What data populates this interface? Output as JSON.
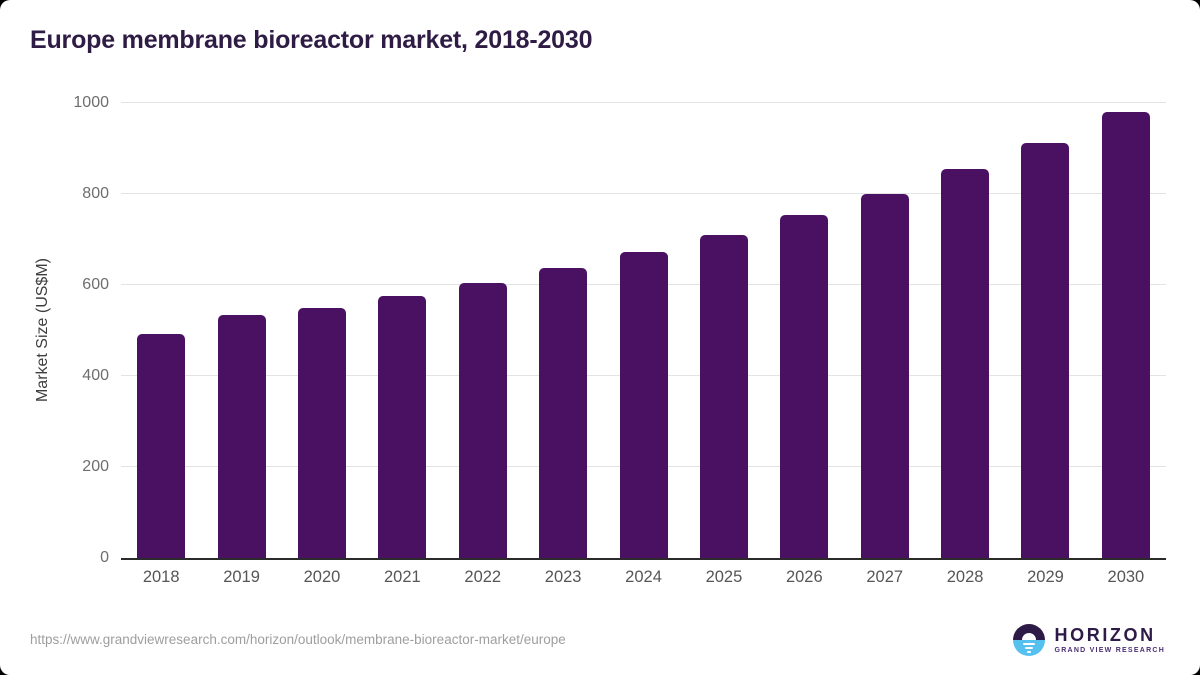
{
  "page": {
    "background": "#000000",
    "card_background": "#ffffff"
  },
  "header": {
    "title": "Europe membrane bioreactor market, 2018-2030"
  },
  "chart_data": {
    "type": "bar",
    "title": "Europe membrane bioreactor market, 2018-2030",
    "categories": [
      "2018",
      "2019",
      "2020",
      "2021",
      "2022",
      "2023",
      "2024",
      "2025",
      "2026",
      "2027",
      "2028",
      "2029",
      "2030"
    ],
    "values": [
      492,
      534,
      550,
      575,
      605,
      637,
      672,
      709,
      753,
      801,
      855,
      913,
      981
    ],
    "xlabel": "",
    "ylabel": "Market Size (US$M)",
    "ylim": [
      0,
      1000
    ],
    "yticks": [
      0,
      200,
      400,
      600,
      800,
      1000
    ],
    "grid": true,
    "legend_position": "none",
    "bar_color": "#4a1162"
  },
  "footer": {
    "source_url": "https://www.grandviewresearch.com/horizon/outlook/membrane-bioreactor-market/europe",
    "logo": {
      "title": "HORIZON",
      "subtitle": "GRAND VIEW RESEARCH"
    }
  },
  "colors": {
    "title_text": "#2f1c45",
    "bar": "#4a1162",
    "y_axis_title": "#3d3d3d",
    "tick_label": "#6e6e6e",
    "x_label": "#565656",
    "gridline": "#e3e3e3",
    "baseline": "#2b2b2b",
    "source_url_text": "#9e9e9e",
    "logo_dark_purple": "#2e1a47",
    "logo_light_blue": "#56c1ef"
  }
}
